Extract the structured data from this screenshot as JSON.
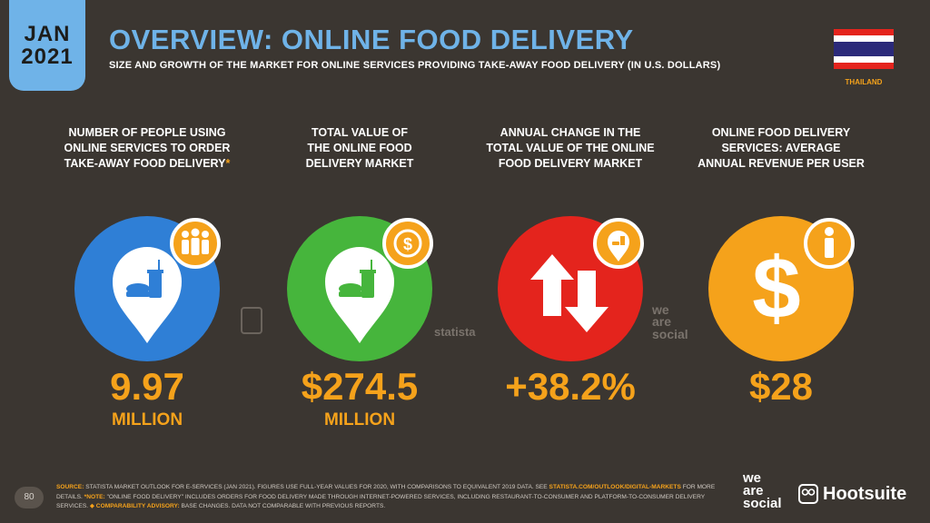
{
  "header": {
    "month": "JAN",
    "year": "2021",
    "title": "OVERVIEW: ONLINE FOOD DELIVERY",
    "subtitle": "SIZE AND GROWTH OF THE MARKET FOR ONLINE SERVICES PROVIDING TAKE-AWAY FOOD DELIVERY (IN U.S. DOLLARS)",
    "country": "THAILAND"
  },
  "colors": {
    "accent": "#6fb3e8",
    "orange": "#f5a21b",
    "blue": "#2f7fd6",
    "green": "#46b53c",
    "red": "#e4241d",
    "background": "#3b3631"
  },
  "stats": [
    {
      "label_lines": [
        "NUMBER OF PEOPLE USING",
        "ONLINE SERVICES TO ORDER",
        "TAKE-AWAY FOOD DELIVERY"
      ],
      "label_suffix": "*",
      "value": "9.97",
      "unit": "MILLION",
      "circle_color": "#2f7fd6",
      "badge_icon": "people-icon",
      "main_icon": "food-pin-icon"
    },
    {
      "label_lines": [
        "TOTAL VALUE OF",
        "THE ONLINE FOOD",
        "DELIVERY MARKET"
      ],
      "label_suffix": "",
      "value": "$274.5",
      "unit": "MILLION",
      "circle_color": "#46b53c",
      "badge_icon": "dollar-coin-icon",
      "main_icon": "food-pin-icon"
    },
    {
      "label_lines": [
        "ANNUAL CHANGE IN THE",
        "TOTAL VALUE OF THE ONLINE",
        "FOOD DELIVERY MARKET"
      ],
      "label_suffix": "",
      "value": "+38.2%",
      "unit": "",
      "circle_color": "#e4241d",
      "badge_icon": "food-pin-small-icon",
      "main_icon": "up-down-arrows-icon"
    },
    {
      "label_lines": [
        "ONLINE FOOD DELIVERY",
        "SERVICES: AVERAGE",
        "ANNUAL REVENUE PER USER"
      ],
      "label_suffix": "",
      "value": "$28",
      "unit": "",
      "circle_color": "#f5a21b",
      "badge_icon": "person-icon",
      "main_icon": "dollar-sign-icon"
    }
  ],
  "watermarks": {
    "statista": "statista",
    "wearesocial": [
      "we",
      "are",
      "social"
    ]
  },
  "footer": {
    "page_number": "80",
    "source_label": "SOURCE:",
    "source_text": "STATISTA MARKET OUTLOOK FOR E-SERVICES (JAN 2021). FIGURES USE FULL-YEAR VALUES FOR 2020, WITH COMPARISONS TO EQUIVALENT 2019 DATA. SEE",
    "source_link": "STATISTA.COM/OUTLOOK/DIGITAL-MARKETS",
    "source_tail": "FOR MORE DETAILS.",
    "note_label": "*NOTE:",
    "note_text": "\"ONLINE FOOD DELIVERY\" INCLUDES ORDERS FOR FOOD DELIVERY MADE THROUGH INTERNET-POWERED SERVICES, INCLUDING RESTAURANT-TO-CONSUMER AND PLATFORM-TO-CONSUMER DELIVERY SERVICES.",
    "advisory_label": "◆ COMPARABILITY ADVISORY:",
    "advisory_text": "BASE CHANGES. DATA NOT COMPARABLE WITH PREVIOUS REPORTS.",
    "logo_wearesocial": [
      "we",
      "are",
      "social"
    ],
    "logo_hootsuite": "Hootsuite"
  }
}
